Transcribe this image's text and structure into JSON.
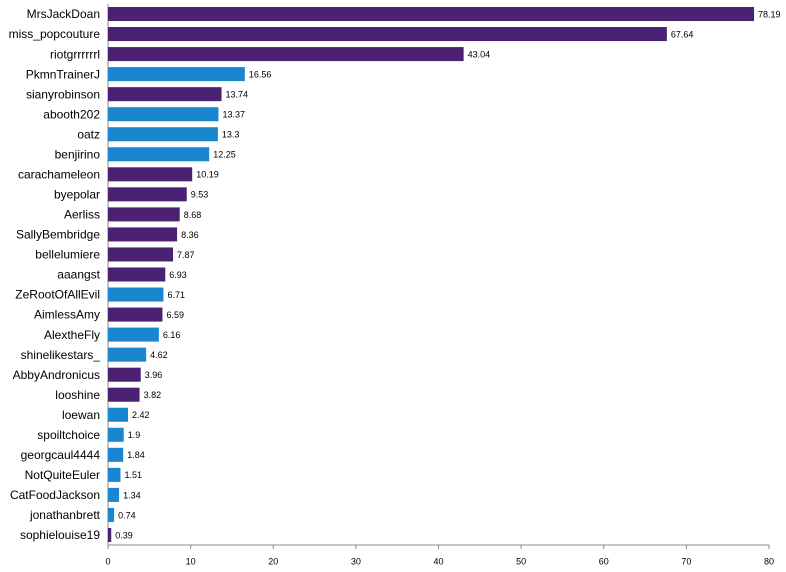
{
  "chart_data": {
    "type": "bar",
    "orientation": "horizontal",
    "categories": [
      "MrsJackDoan",
      "miss_popcouture",
      "riotgrrrrrrl",
      "PkmnTrainerJ",
      "sianyrobinson",
      "abooth202",
      "oatz",
      "benjirino",
      "carachameleon",
      "byepolar",
      "Aerliss",
      "SallyBembridge",
      "bellelumiere",
      "aaangst",
      "ZeRootOfAllEvil",
      "AimlessAmy",
      "AlextheFly",
      "shinelikestars_",
      "AbbyAndronicus",
      "looshine",
      "loewan",
      "spoiltchoice",
      "georgcaul4444",
      "NotQuiteEuler",
      "CatFoodJackson",
      "jonathanbrett",
      "sophielouise19"
    ],
    "values": [
      78.19,
      67.64,
      43.04,
      16.56,
      13.74,
      13.37,
      13.3,
      12.25,
      10.19,
      9.53,
      8.68,
      8.36,
      7.87,
      6.93,
      6.71,
      6.59,
      6.16,
      4.62,
      3.96,
      3.82,
      2.42,
      1.9,
      1.84,
      1.51,
      1.34,
      0.74,
      0.39
    ],
    "colors": [
      "#4b2273",
      "#4b2273",
      "#4b2273",
      "#1a86d0",
      "#4b2273",
      "#1a86d0",
      "#1a86d0",
      "#1a86d0",
      "#4b2273",
      "#4b2273",
      "#4b2273",
      "#4b2273",
      "#4b2273",
      "#4b2273",
      "#1a86d0",
      "#4b2273",
      "#1a86d0",
      "#1a86d0",
      "#4b2273",
      "#4b2273",
      "#1a86d0",
      "#1a86d0",
      "#1a86d0",
      "#1a86d0",
      "#1a86d0",
      "#1a86d0",
      "#4b2273"
    ],
    "xlim": [
      0,
      80
    ],
    "xticks": [
      0,
      10,
      20,
      30,
      40,
      50,
      60,
      70,
      80
    ],
    "grid": false
  }
}
